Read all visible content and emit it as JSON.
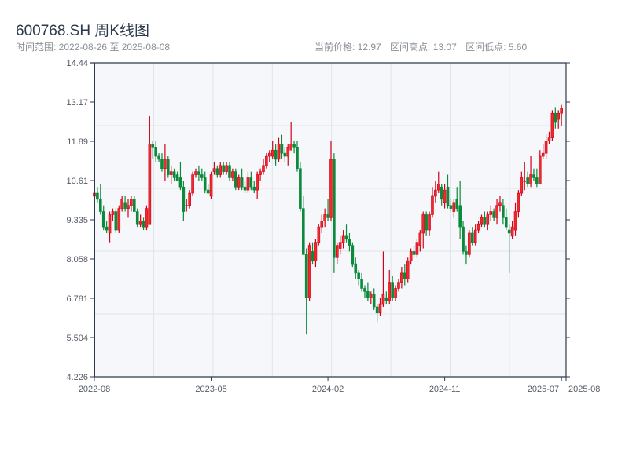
{
  "header": {
    "title": "600768.SH 周K线图",
    "range_label": "时间范围: 2022-08-26 至 2025-08-08",
    "current_price": "当前价格: 12.97",
    "range_high": "区间高点: 13.07",
    "range_low": "区间低点: 5.60"
  },
  "colors": {
    "up": "#d0021b",
    "up_fill": "#ee2a2a",
    "down": "#0a8a3a",
    "axis": "#2c3a4b",
    "grid": "#e1e4e8",
    "plot_bg": "#f5f7fa"
  },
  "chart_data": {
    "type": "candlestick",
    "title": "600768.SH 周K线图",
    "ylim": [
      4.226,
      14.44
    ],
    "xlim": [
      0,
      153.5
    ],
    "y_ticks": [
      "14.44",
      "13.17",
      "11.89",
      "10.61",
      "9.335",
      "8.058",
      "6.781",
      "5.504",
      "4.226"
    ],
    "x_ticks": [
      {
        "label": "2022-08",
        "index": 0
      },
      {
        "label": "2023-05",
        "index": 38
      },
      {
        "label": "2024-02",
        "index": 76
      },
      {
        "label": "2024-11",
        "index": 114
      },
      {
        "label": "2025-07",
        "index": 152
      },
      {
        "label": "2025-08",
        "index": 153.5
      }
    ],
    "ohlc_fields": [
      "open",
      "high",
      "low",
      "close"
    ],
    "ohlc": [
      [
        10.1,
        10.5,
        9.8,
        10.2
      ],
      [
        10.2,
        10.4,
        9.9,
        10.0
      ],
      [
        10.0,
        10.5,
        9.5,
        9.6
      ],
      [
        9.6,
        9.8,
        9.0,
        9.1
      ],
      [
        9.1,
        9.3,
        8.9,
        9.0
      ],
      [
        8.9,
        9.6,
        8.6,
        9.5
      ],
      [
        9.5,
        9.7,
        9.3,
        9.6
      ],
      [
        9.6,
        9.7,
        8.9,
        9.0
      ],
      [
        9.0,
        9.8,
        8.9,
        9.7
      ],
      [
        9.7,
        10.1,
        9.6,
        10.0
      ],
      [
        9.9,
        10.1,
        9.6,
        9.7
      ],
      [
        9.7,
        10.0,
        9.4,
        9.8
      ],
      [
        9.8,
        10.1,
        9.6,
        10.0
      ],
      [
        10.0,
        10.1,
        9.6,
        9.6
      ],
      [
        9.6,
        9.7,
        9.1,
        9.2
      ],
      [
        9.2,
        9.5,
        9.1,
        9.3
      ],
      [
        9.3,
        9.4,
        9.0,
        9.1
      ],
      [
        9.1,
        9.8,
        9.0,
        9.7
      ],
      [
        9.2,
        12.7,
        9.2,
        11.8
      ],
      [
        11.8,
        11.9,
        11.3,
        11.7
      ],
      [
        11.7,
        11.9,
        11.2,
        11.4
      ],
      [
        11.4,
        11.5,
        11.2,
        11.3
      ],
      [
        11.3,
        11.5,
        10.9,
        11.0
      ],
      [
        11.0,
        11.8,
        10.6,
        11.3
      ],
      [
        11.3,
        11.4,
        10.7,
        10.8
      ],
      [
        10.8,
        11.1,
        10.5,
        10.9
      ],
      [
        10.9,
        11.0,
        10.6,
        10.7
      ],
      [
        10.8,
        10.9,
        10.6,
        10.6
      ],
      [
        10.7,
        11.2,
        10.3,
        10.4
      ],
      [
        10.4,
        10.6,
        9.3,
        9.6
      ],
      [
        9.8,
        10.0,
        9.6,
        9.8
      ],
      [
        9.8,
        10.3,
        9.7,
        10.2
      ],
      [
        10.2,
        10.9,
        10.1,
        10.8
      ],
      [
        10.8,
        11.0,
        10.7,
        10.9
      ],
      [
        10.9,
        11.1,
        10.6,
        10.8
      ],
      [
        10.8,
        11.0,
        10.6,
        10.7
      ],
      [
        10.7,
        10.9,
        10.2,
        10.3
      ],
      [
        10.3,
        10.5,
        10.2,
        10.2
      ],
      [
        10.1,
        10.9,
        10.0,
        10.8
      ],
      [
        10.9,
        11.2,
        10.8,
        11.0
      ],
      [
        11.0,
        11.1,
        10.7,
        10.8
      ],
      [
        10.8,
        11.2,
        10.7,
        11.1
      ],
      [
        11.1,
        11.2,
        10.8,
        10.9
      ],
      [
        10.9,
        11.2,
        10.8,
        11.1
      ],
      [
        11.1,
        11.2,
        10.6,
        10.7
      ],
      [
        10.7,
        11.0,
        10.6,
        10.9
      ],
      [
        10.9,
        11.0,
        10.3,
        10.4
      ],
      [
        10.4,
        10.8,
        10.3,
        10.7
      ],
      [
        10.7,
        11.0,
        10.3,
        10.4
      ],
      [
        10.4,
        10.6,
        10.2,
        10.3
      ],
      [
        10.3,
        10.9,
        10.2,
        10.7
      ],
      [
        10.7,
        10.9,
        10.3,
        10.4
      ],
      [
        10.4,
        10.6,
        10.2,
        10.3
      ],
      [
        10.3,
        10.9,
        10.0,
        10.8
      ],
      [
        10.8,
        11.0,
        10.6,
        10.9
      ],
      [
        10.9,
        11.3,
        10.8,
        11.1
      ],
      [
        11.1,
        11.5,
        11.0,
        11.4
      ],
      [
        11.4,
        11.6,
        11.2,
        11.5
      ],
      [
        11.4,
        11.9,
        11.3,
        11.6
      ],
      [
        11.6,
        11.8,
        11.1,
        11.3
      ],
      [
        11.3,
        12.0,
        11.2,
        11.8
      ],
      [
        11.8,
        12.1,
        11.3,
        11.5
      ],
      [
        11.5,
        11.7,
        11.2,
        11.4
      ],
      [
        11.4,
        11.8,
        11.1,
        11.7
      ],
      [
        11.6,
        12.5,
        11.6,
        11.8
      ],
      [
        11.8,
        11.9,
        11.5,
        11.7
      ],
      [
        11.7,
        11.9,
        10.9,
        11.0
      ],
      [
        11.0,
        11.2,
        9.6,
        9.7
      ],
      [
        9.7,
        10.1,
        8.2,
        8.2
      ],
      [
        8.2,
        8.4,
        5.6,
        6.8
      ],
      [
        6.8,
        8.6,
        6.7,
        8.5
      ],
      [
        8.3,
        8.6,
        7.9,
        8.0
      ],
      [
        8.0,
        8.7,
        7.8,
        8.6
      ],
      [
        8.6,
        9.2,
        8.5,
        9.1
      ],
      [
        9.1,
        9.5,
        8.9,
        9.3
      ],
      [
        9.3,
        9.7,
        9.1,
        9.5
      ],
      [
        9.5,
        10.0,
        9.3,
        9.4
      ],
      [
        9.4,
        11.9,
        9.3,
        11.3
      ],
      [
        11.3,
        11.5,
        7.6,
        8.1
      ],
      [
        8.1,
        8.6,
        7.9,
        8.5
      ],
      [
        8.4,
        8.8,
        8.2,
        8.6
      ],
      [
        8.6,
        9.0,
        8.4,
        8.8
      ],
      [
        8.8,
        9.2,
        8.6,
        8.7
      ],
      [
        8.7,
        8.9,
        8.3,
        8.5
      ],
      [
        8.5,
        8.6,
        7.8,
        7.9
      ],
      [
        7.9,
        8.1,
        7.4,
        7.6
      ],
      [
        7.6,
        7.7,
        7.2,
        7.4
      ],
      [
        7.4,
        7.6,
        7.0,
        7.1
      ],
      [
        7.1,
        7.2,
        6.8,
        7.0
      ],
      [
        7.0,
        7.3,
        6.7,
        6.8
      ],
      [
        6.8,
        7.0,
        6.6,
        6.9
      ],
      [
        6.9,
        7.1,
        6.4,
        6.5
      ],
      [
        6.5,
        6.6,
        6.0,
        6.3
      ],
      [
        6.3,
        6.8,
        6.2,
        6.6
      ],
      [
        6.6,
        8.3,
        6.5,
        6.9
      ],
      [
        6.8,
        7.0,
        6.6,
        6.7
      ],
      [
        6.7,
        7.7,
        6.6,
        7.3
      ],
      [
        7.3,
        7.5,
        6.7,
        6.8
      ],
      [
        6.8,
        7.2,
        6.7,
        7.1
      ],
      [
        7.1,
        7.4,
        7.0,
        7.3
      ],
      [
        7.3,
        7.8,
        7.1,
        7.6
      ],
      [
        7.6,
        7.9,
        7.2,
        7.4
      ],
      [
        7.4,
        8.1,
        7.3,
        8.0
      ],
      [
        8.0,
        8.4,
        7.9,
        8.3
      ],
      [
        8.3,
        8.5,
        8.1,
        8.2
      ],
      [
        8.2,
        8.7,
        8.1,
        8.6
      ],
      [
        8.5,
        9.0,
        8.3,
        8.9
      ],
      [
        8.9,
        9.6,
        8.4,
        9.5
      ],
      [
        9.5,
        9.6,
        8.8,
        9.0
      ],
      [
        9.0,
        9.6,
        8.8,
        9.5
      ],
      [
        9.5,
        10.4,
        9.4,
        10.1
      ],
      [
        10.1,
        10.6,
        9.9,
        10.3
      ],
      [
        10.3,
        10.9,
        10.2,
        10.5
      ],
      [
        10.4,
        10.5,
        9.8,
        10.0
      ],
      [
        9.9,
        10.5,
        9.7,
        10.3
      ],
      [
        10.4,
        10.8,
        9.7,
        9.8
      ],
      [
        9.8,
        10.0,
        9.6,
        9.7
      ],
      [
        9.6,
        10.0,
        9.4,
        9.9
      ],
      [
        10.0,
        10.4,
        9.6,
        9.7
      ],
      [
        9.8,
        10.6,
        8.7,
        9.1
      ],
      [
        9.1,
        9.3,
        8.2,
        8.3
      ],
      [
        8.3,
        8.5,
        7.9,
        8.2
      ],
      [
        8.2,
        9.0,
        8.1,
        8.9
      ],
      [
        8.9,
        9.1,
        8.5,
        8.6
      ],
      [
        8.6,
        9.2,
        8.5,
        9.0
      ],
      [
        9.0,
        9.3,
        8.9,
        9.2
      ],
      [
        9.2,
        9.5,
        9.1,
        9.4
      ],
      [
        9.4,
        9.6,
        9.1,
        9.2
      ],
      [
        9.2,
        9.6,
        9.0,
        9.5
      ],
      [
        9.5,
        9.8,
        9.3,
        9.6
      ],
      [
        9.6,
        9.7,
        9.3,
        9.4
      ],
      [
        9.4,
        10.0,
        9.2,
        9.8
      ],
      [
        9.8,
        10.1,
        9.6,
        9.9
      ],
      [
        9.8,
        10.0,
        9.2,
        9.4
      ],
      [
        9.4,
        9.7,
        9.0,
        9.1
      ],
      [
        9.0,
        9.2,
        7.6,
        8.9
      ],
      [
        8.8,
        9.3,
        8.7,
        9.1
      ],
      [
        9.0,
        9.9,
        8.8,
        9.6
      ],
      [
        9.6,
        10.3,
        9.4,
        10.2
      ],
      [
        10.2,
        10.9,
        10.1,
        10.7
      ],
      [
        10.6,
        11.2,
        10.3,
        10.6
      ],
      [
        10.7,
        10.9,
        10.4,
        10.5
      ],
      [
        10.5,
        11.4,
        10.4,
        10.8
      ],
      [
        10.8,
        11.0,
        10.6,
        10.7
      ],
      [
        10.7,
        11.0,
        10.4,
        10.5
      ],
      [
        10.5,
        11.6,
        10.5,
        11.4
      ],
      [
        11.4,
        11.8,
        11.3,
        11.5
      ],
      [
        11.5,
        12.1,
        11.3,
        11.9
      ],
      [
        11.9,
        12.2,
        11.8,
        12.0
      ],
      [
        12.0,
        12.9,
        11.9,
        12.8
      ],
      [
        12.8,
        13.0,
        12.3,
        12.5
      ],
      [
        12.6,
        12.9,
        12.3,
        12.8
      ],
      [
        12.8,
        13.07,
        12.4,
        12.97
      ]
    ]
  }
}
